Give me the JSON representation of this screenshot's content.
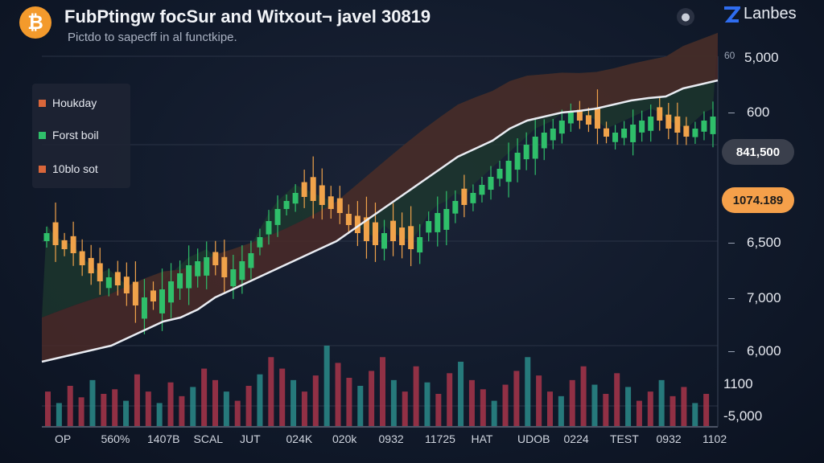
{
  "header": {
    "title": "FubPtingw focSur and Witxout¬ javel 30819",
    "subtitle": "Pictdo to sapecff in al functkipe.",
    "logo_glyph": "₿",
    "help_glyph": "●",
    "brand": "Lanbes"
  },
  "legend": [
    {
      "label": "Houkday",
      "color": "#d9663a"
    },
    {
      "label": "Forst boil",
      "color": "#2fbf6a"
    },
    {
      "label": "10blo sot",
      "color": "#d9663a"
    }
  ],
  "y_axis": [
    {
      "tick": "60",
      "label": "5,000"
    },
    {
      "tick": "",
      "label": "600"
    },
    {
      "tick": "",
      "label": "6,500"
    },
    {
      "tick": "",
      "label": "7,000"
    },
    {
      "tick": "",
      "label": "6,000"
    },
    {
      "tick": "",
      "label": "1100"
    },
    {
      "tick": "",
      "label": "-5,000"
    }
  ],
  "badges": [
    {
      "label": "841,500",
      "bg": "#3a3f4c",
      "fg": "#ffffff"
    },
    {
      "label": "1074.189",
      "bg": "#f5a04a",
      "fg": "#1b1b1b"
    }
  ],
  "x_axis": [
    "OP",
    "560%",
    "1407B",
    "SCAL",
    "JUT",
    "024K",
    "020k",
    "0932",
    "11725",
    "HAT",
    "UDOB",
    "0224",
    "TEST",
    "0932",
    "1102"
  ],
  "colors": {
    "up": "#2fbf6a",
    "down": "#f0a24a",
    "area_green": "#1e3a2e",
    "area_red": "#4a2a28",
    "line": "#e9ecf2",
    "vol_red": "#a8354a",
    "vol_teal": "#2a8b8a"
  },
  "chart_data": {
    "type": "line",
    "title": "FubPtingw focSur and Witxout¬ javel 30819",
    "candles_close": [
      560,
      545,
      540,
      535,
      520,
      510,
      500,
      505,
      495,
      485,
      470,
      480,
      475,
      490,
      500,
      510,
      520,
      525,
      530,
      520,
      505,
      515,
      525,
      535,
      555,
      575,
      590,
      600,
      610,
      605,
      600,
      595,
      590,
      585,
      570,
      560,
      550,
      545,
      560,
      550,
      545,
      540,
      555,
      575,
      585,
      590,
      600,
      595,
      610,
      620,
      630,
      640,
      650,
      660,
      670,
      680,
      685,
      690,
      700,
      710,
      700,
      695,
      690,
      680,
      685,
      690,
      695,
      700,
      705,
      700,
      690,
      685,
      680,
      690,
      700,
      705
    ],
    "line_values": [
      400,
      405,
      410,
      415,
      420,
      430,
      440,
      450,
      455,
      465,
      480,
      490,
      500,
      510,
      520,
      530,
      540,
      550,
      565,
      580,
      595,
      610,
      625,
      640,
      655,
      665,
      675,
      690,
      700,
      705,
      710,
      712,
      715,
      720,
      725,
      728,
      730,
      740,
      745,
      750
    ],
    "volume": [
      30,
      20,
      35,
      25,
      40,
      28,
      32,
      22,
      45,
      30,
      20,
      38,
      26,
      34,
      50,
      40,
      30,
      22,
      35,
      45,
      60,
      50,
      40,
      30,
      44,
      70,
      55,
      42,
      35,
      48,
      60,
      40,
      30,
      52,
      38,
      28,
      46,
      56,
      40,
      32,
      22,
      36,
      48,
      60,
      44,
      30,
      26,
      40,
      52,
      36,
      28,
      46,
      34,
      22,
      30,
      40,
      26,
      34,
      20,
      28
    ]
  }
}
